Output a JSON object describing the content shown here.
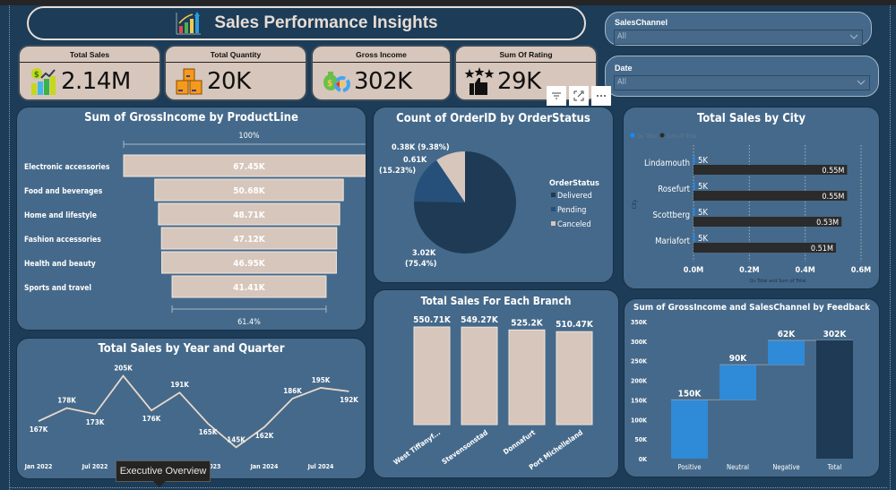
{
  "header": {
    "title": "Sales Performance Insights",
    "icon": "bar-chart-growth-icon"
  },
  "kpis": [
    {
      "label": "Total Sales",
      "value": "2.14M",
      "icon": "sales-growth-icon"
    },
    {
      "label": "Total Quantity",
      "value": "20K",
      "icon": "boxes-icon"
    },
    {
      "label": "Gross Income",
      "value": "302K",
      "icon": "money-bag-chart-icon"
    },
    {
      "label": "Sum Of Rating",
      "value": "29K",
      "icon": "thumbs-up-stars-icon"
    }
  ],
  "slicers": [
    {
      "label": "SalesChannel",
      "value": "All"
    },
    {
      "label": "Date",
      "value": "All"
    }
  ],
  "visual_header": {
    "filter": "filter-icon",
    "focus": "focus-mode-icon",
    "more": "more-options-icon"
  },
  "tooltip": {
    "text": "Executive Overview"
  },
  "chart_data": [
    {
      "type": "bar",
      "subtype": "funnel",
      "title": "Sum of GrossIncome by ProductLine",
      "categories": [
        "Electronic accessories",
        "Food and beverages",
        "Home and lifestyle",
        "Fashion accessories",
        "Health and beauty",
        "Sports and travel"
      ],
      "values": [
        67.45,
        50.68,
        48.71,
        47.12,
        46.95,
        41.41
      ],
      "value_labels": [
        "67.45K",
        "50.68K",
        "48.71K",
        "47.12K",
        "46.95K",
        "41.41K"
      ],
      "top_label": "100%",
      "bottom_label": "61.4%",
      "units": "K",
      "color": "#d7c6bb"
    },
    {
      "type": "pie",
      "title": "Count of OrderID by OrderStatus",
      "legend_title": "OrderStatus",
      "legend_position": "right",
      "categories": [
        "Delivered",
        "Pending",
        "Canceled"
      ],
      "values": [
        3.02,
        0.61,
        0.38
      ],
      "percents": [
        75.4,
        15.23,
        9.38
      ],
      "labels": [
        "3.02K (75.4%)",
        "0.61K (15.23%)",
        "0.38K (9.38%)"
      ],
      "colors": [
        "#1e3a55",
        "#26507a",
        "#d7c6bb"
      ]
    },
    {
      "type": "bar",
      "orientation": "horizontal",
      "title": "Total Sales by City",
      "categories": [
        "Lindamouth",
        "Rosefurt",
        "Scottberg",
        "Mariafort"
      ],
      "series": [
        {
          "name": "Qu Total",
          "values": [
            0.005,
            0.005,
            0.005,
            0.005
          ],
          "labels": [
            "5K",
            "5K",
            "5K",
            "5K"
          ],
          "color": "#118dff"
        },
        {
          "name": "Sum of Total",
          "values": [
            0.55,
            0.55,
            0.53,
            0.51
          ],
          "labels": [
            "0.55M",
            "0.55M",
            "0.53M",
            "0.51M"
          ],
          "color": "#2b2b2b"
        }
      ],
      "xlabel": "Qu Total and Sum of Total",
      "ylabel": "City",
      "xticks": [
        "0.0M",
        "0.2M",
        "0.4M",
        "0.6M"
      ],
      "xlim": [
        0,
        0.6
      ],
      "legend_position": "top-left",
      "grid": true
    },
    {
      "type": "line",
      "title": "Total Sales by Year and Quarter",
      "x": [
        "2022 Q1",
        "2022 Q2",
        "2022 Q3",
        "2022 Q4",
        "2023 Q1",
        "2023 Q2",
        "2023 Q3",
        "2023 Q4",
        "2024 Q1",
        "2024 Q2",
        "2024 Q3",
        "2024 Q4"
      ],
      "values": [
        167,
        178,
        173,
        205,
        176,
        191,
        165,
        145,
        162,
        186,
        195,
        192
      ],
      "labels": [
        "167K",
        "178K",
        "173K",
        "205K",
        "176K",
        "191K",
        "165K",
        "145K",
        "162K",
        "186K",
        "195K",
        "192K"
      ],
      "xticks": [
        "Jan 2022",
        "Jul 2022",
        "Jan 2023",
        "Jul 2023",
        "Jan 2024",
        "Jul 2024"
      ],
      "ylim": [
        140,
        210
      ],
      "color": "#e8d8cc"
    },
    {
      "type": "bar",
      "title": "Total Sales For Each Branch",
      "categories": [
        "West Tiffanyf...",
        "Stevensonstad",
        "Donnafurt",
        "Port Michelleland"
      ],
      "values": [
        550.71,
        549.27,
        525.2,
        510.47
      ],
      "labels": [
        "550.71K",
        "549.27K",
        "525.2K",
        "510.47K"
      ],
      "units": "K",
      "color": "#d7c6bb"
    },
    {
      "type": "bar",
      "subtype": "waterfall",
      "title": "Sum of GrossIncome and SalesChannel by Feedback",
      "categories": [
        "Positive",
        "Neutral",
        "Negative",
        "Total"
      ],
      "values": [
        150,
        90,
        62,
        302
      ],
      "labels": [
        "150K",
        "90K",
        "62K",
        "302K"
      ],
      "yticks": [
        "0K",
        "50K",
        "100K",
        "150K",
        "200K",
        "250K",
        "300K",
        "350K"
      ],
      "ylim": [
        0,
        350
      ],
      "colors": {
        "increase": "#2f8ad8",
        "total": "#1e3a55"
      }
    }
  ]
}
